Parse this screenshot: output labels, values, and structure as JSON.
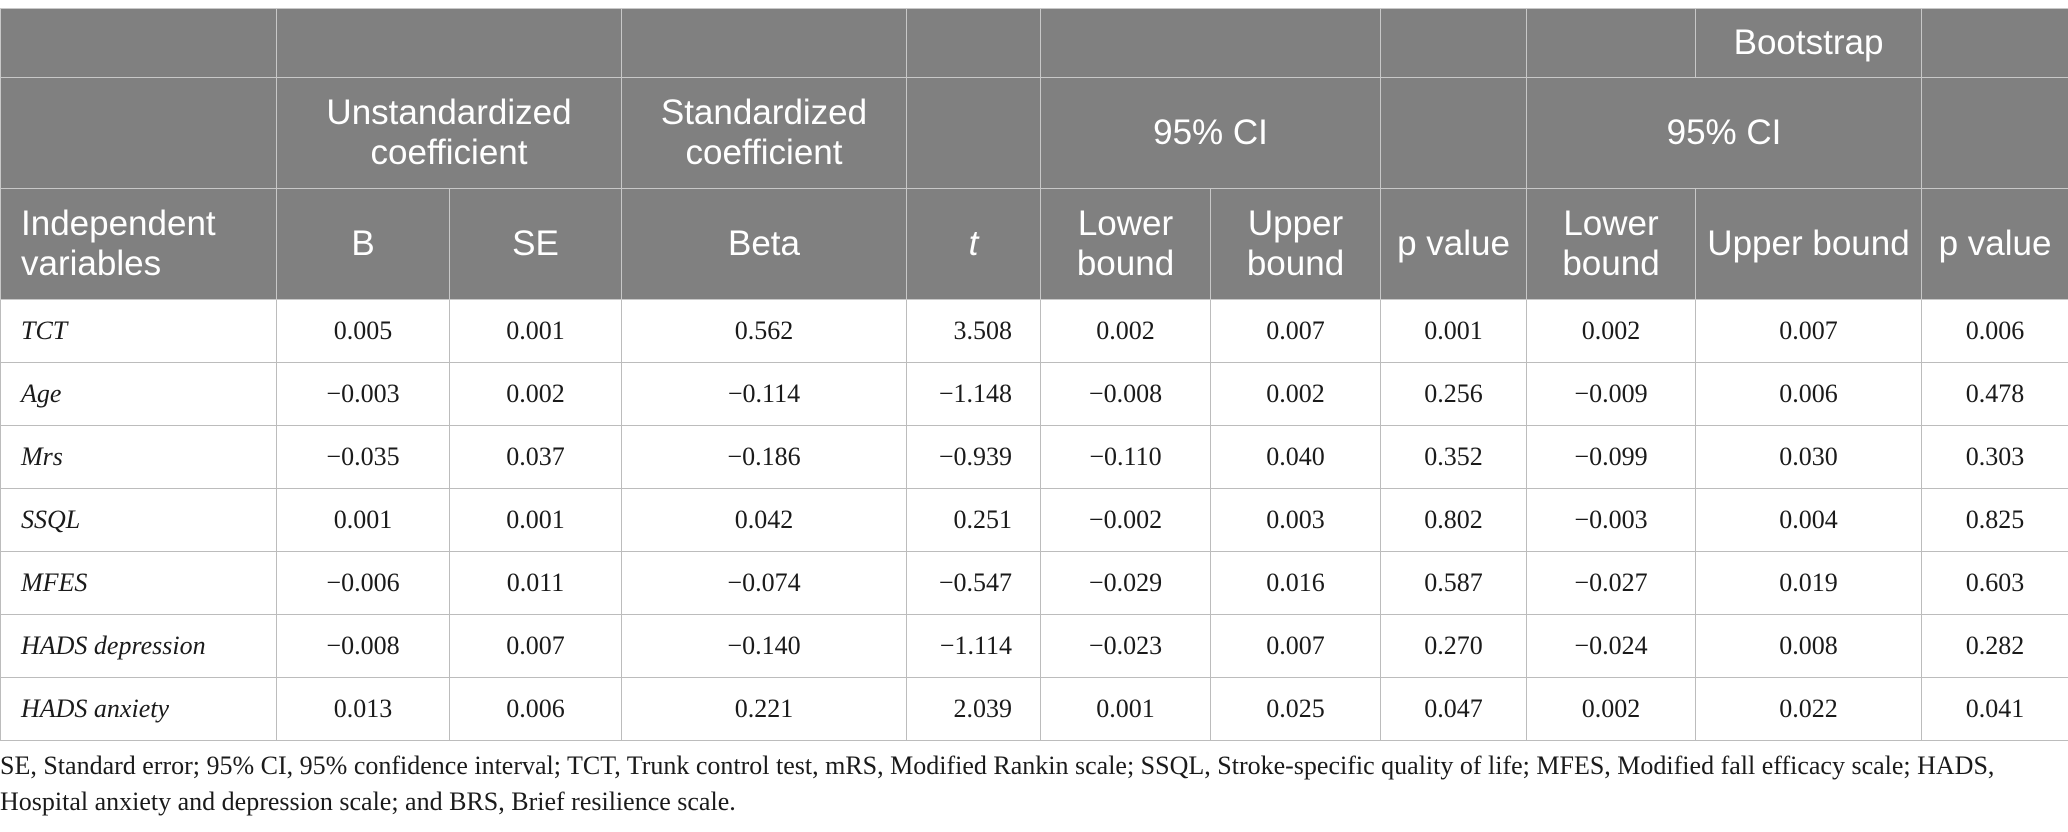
{
  "header": {
    "bootstrap": "Bootstrap",
    "unstandardized": "Unstandardized coefficient",
    "standardized": "Standardized coefficient",
    "ci_left": "95% CI",
    "ci_right": "95% CI",
    "independent": "Independent variables",
    "b": "B",
    "se": "SE",
    "beta": "Beta",
    "t": "t",
    "lower1": "Lower bound",
    "upper1": "Upper bound",
    "p1": "p value",
    "lower2": "Lower bound",
    "upper2": "Upper bound",
    "p2": "p value"
  },
  "rows": [
    {
      "var": "TCT",
      "b": "0.005",
      "se": "0.001",
      "beta": "0.562",
      "t": "3.508",
      "lo1": "0.002",
      "up1": "0.007",
      "p1": "0.001",
      "lo2": "0.002",
      "up2": "0.007",
      "p2": "0.006"
    },
    {
      "var": "Age",
      "b": "−0.003",
      "se": "0.002",
      "beta": "−0.114",
      "t": "−1.148",
      "lo1": "−0.008",
      "up1": "0.002",
      "p1": "0.256",
      "lo2": "−0.009",
      "up2": "0.006",
      "p2": "0.478"
    },
    {
      "var": "Mrs",
      "b": "−0.035",
      "se": "0.037",
      "beta": "−0.186",
      "t": "−0.939",
      "lo1": "−0.110",
      "up1": "0.040",
      "p1": "0.352",
      "lo2": "−0.099",
      "up2": "0.030",
      "p2": "0.303"
    },
    {
      "var": "SSQL",
      "b": "0.001",
      "se": "0.001",
      "beta": "0.042",
      "t": "0.251",
      "lo1": "−0.002",
      "up1": "0.003",
      "p1": "0.802",
      "lo2": "−0.003",
      "up2": "0.004",
      "p2": "0.825"
    },
    {
      "var": "MFES",
      "b": "−0.006",
      "se": "0.011",
      "beta": "−0.074",
      "t": "−0.547",
      "lo1": "−0.029",
      "up1": "0.016",
      "p1": "0.587",
      "lo2": "−0.027",
      "up2": "0.019",
      "p2": "0.603"
    },
    {
      "var": "HADS depression",
      "b": "−0.008",
      "se": "0.007",
      "beta": "−0.140",
      "t": "−1.114",
      "lo1": "−0.023",
      "up1": "0.007",
      "p1": "0.270",
      "lo2": "−0.024",
      "up2": "0.008",
      "p2": "0.282"
    },
    {
      "var": "HADS anxiety",
      "b": "0.013",
      "se": "0.006",
      "beta": "0.221",
      "t": "2.039",
      "lo1": "0.001",
      "up1": "0.025",
      "p1": "0.047",
      "lo2": "0.002",
      "up2": "0.022",
      "p2": "0.041"
    }
  ],
  "footnote": "SE, Standard error; 95% CI, 95% confidence interval; TCT, Trunk control test, mRS, Modified Rankin scale; SSQL, Stroke-specific quality of life; MFES, Modified fall efficacy scale; HADS, Hospital anxiety and depression scale; and BRS, Brief resilience scale.",
  "colors": {
    "header_bg": "#808080",
    "header_text": "#ffffff",
    "border": "#bcbcbc"
  }
}
